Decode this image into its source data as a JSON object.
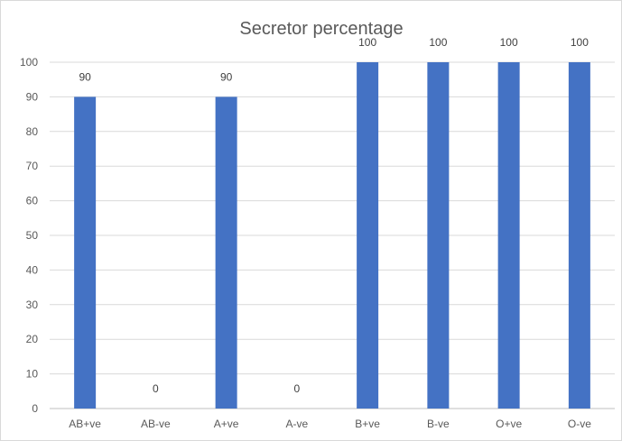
{
  "chart_data": {
    "type": "bar",
    "title": "Secretor percentage",
    "xlabel": "",
    "ylabel": "",
    "categories": [
      "AB+ve",
      "AB-ve",
      "A+ve",
      "A-ve",
      "B+ve",
      "B-ve",
      "O+ve",
      "O-ve"
    ],
    "values": [
      90,
      0,
      90,
      0,
      100,
      100,
      100,
      100
    ],
    "ylim": [
      0,
      100
    ],
    "yticks": [
      0,
      10,
      20,
      30,
      40,
      50,
      60,
      70,
      80,
      90,
      100
    ],
    "grid": true,
    "legend": "none",
    "data_labels": true,
    "bar_color": "#4472C4"
  }
}
